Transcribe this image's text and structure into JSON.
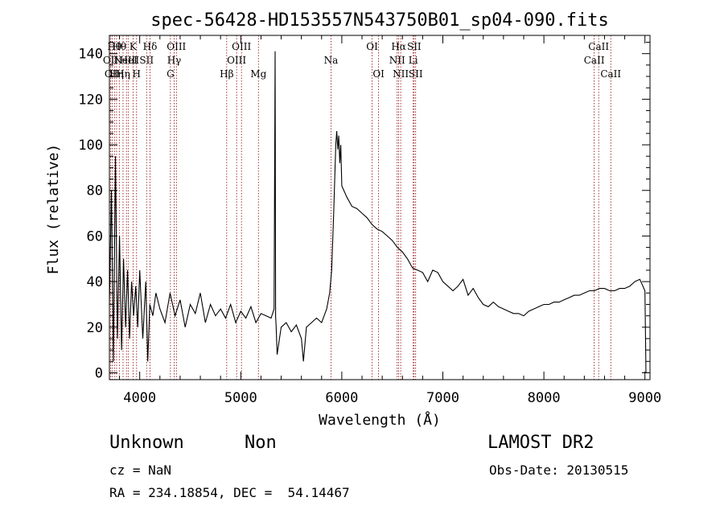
{
  "chart_data": {
    "type": "line",
    "title": "spec-56428-HD153557N543750B01_sp04-090.fits",
    "xlabel": "Wavelength (Å)",
    "ylabel": "Flux (relative)",
    "xlim": [
      3700,
      9050
    ],
    "ylim": [
      -3,
      148
    ],
    "xticks": [
      4000,
      5000,
      6000,
      7000,
      8000,
      9000
    ],
    "yticks": [
      0,
      20,
      40,
      60,
      80,
      100,
      120,
      140
    ],
    "grid": false,
    "line_color": "#000000",
    "marker_color": "#8b0000",
    "series": [
      {
        "x": [
          3700,
          3720,
          3740,
          3760,
          3780,
          3800,
          3820,
          3840,
          3860,
          3880,
          3900,
          3920,
          3940,
          3960,
          3980,
          4000,
          4030,
          4060,
          4080,
          4100,
          4130,
          4160,
          4200,
          4250,
          4300,
          4350,
          4400,
          4450,
          4500,
          4550,
          4600,
          4650,
          4700,
          4750,
          4800,
          4850,
          4900,
          4950,
          5000,
          5050,
          5100,
          5150,
          5200,
          5250,
          5300,
          5330,
          5340,
          5345,
          5350,
          5360,
          5400,
          5450,
          5500,
          5550,
          5600,
          5620,
          5650,
          5700,
          5750,
          5800,
          5850,
          5880,
          5900,
          5920,
          5940,
          5950,
          5960,
          5970,
          5980,
          5990,
          6000,
          6050,
          6100,
          6150,
          6200,
          6250,
          6300,
          6350,
          6400,
          6450,
          6500,
          6550,
          6600,
          6650,
          6700,
          6750,
          6800,
          6850,
          6900,
          6950,
          7000,
          7050,
          7100,
          7150,
          7200,
          7250,
          7300,
          7350,
          7400,
          7450,
          7500,
          7550,
          7600,
          7650,
          7700,
          7750,
          7800,
          7850,
          7900,
          7950,
          8000,
          8050,
          8100,
          8150,
          8200,
          8250,
          8300,
          8350,
          8400,
          8450,
          8500,
          8550,
          8600,
          8650,
          8700,
          8750,
          8800,
          8850,
          8900,
          8950,
          9000,
          9010
        ],
        "y": [
          30,
          80,
          5,
          95,
          15,
          60,
          10,
          50,
          20,
          45,
          15,
          40,
          25,
          38,
          20,
          45,
          15,
          40,
          5,
          30,
          25,
          35,
          28,
          22,
          35,
          25,
          32,
          20,
          30,
          26,
          35,
          22,
          30,
          25,
          28,
          24,
          30,
          22,
          27,
          24,
          29,
          22,
          26,
          25,
          24,
          28,
          141,
          25,
          20,
          8,
          20,
          22,
          18,
          21,
          15,
          5,
          20,
          22,
          24,
          22,
          28,
          35,
          45,
          70,
          100,
          106,
          98,
          104,
          92,
          100,
          82,
          77,
          73,
          72,
          70,
          68,
          65,
          63,
          62,
          60,
          58,
          55,
          53,
          50,
          46,
          45,
          44,
          40,
          45,
          44,
          40,
          38,
          36,
          38,
          41,
          34,
          37,
          33,
          30,
          29,
          31,
          29,
          28,
          27,
          26,
          26,
          25,
          27,
          28,
          29,
          30,
          30,
          31,
          31,
          32,
          33,
          34,
          34,
          35,
          36,
          36,
          37,
          37,
          36,
          36,
          37,
          37,
          38,
          40,
          41,
          36,
          0
        ]
      }
    ],
    "lines": [
      {
        "x": 3712,
        "label": "OII",
        "row": 2
      },
      {
        "x": 3728,
        "label": "OII",
        "row": 3
      },
      {
        "x": 3750,
        "label": "Hθ",
        "row": 1
      },
      {
        "x": 3771,
        "label": "Hη",
        "row": 3
      },
      {
        "x": 3798,
        "label": "Hθ",
        "row": 1
      },
      {
        "x": 3835,
        "label": "Hη",
        "row": 3
      },
      {
        "x": 3869,
        "label": "NeIII",
        "row": 2
      },
      {
        "x": 3889,
        "label": "HeI",
        "row": 2
      },
      {
        "x": 3934,
        "label": "K",
        "row": 1
      },
      {
        "x": 3969,
        "label": "H",
        "row": 3
      },
      {
        "x": 4068,
        "label": "SII",
        "row": 2
      },
      {
        "x": 4102,
        "label": "Hδ",
        "row": 1
      },
      {
        "x": 4304,
        "label": "G",
        "row": 3
      },
      {
        "x": 4341,
        "label": "Hγ",
        "row": 2
      },
      {
        "x": 4363,
        "label": "OIII",
        "row": 1
      },
      {
        "x": 4861,
        "label": "Hβ",
        "row": 3
      },
      {
        "x": 4959,
        "label": "OIII",
        "row": 2
      },
      {
        "x": 5007,
        "label": "OIII",
        "row": 1
      },
      {
        "x": 5175,
        "label": "Mg",
        "row": 3
      },
      {
        "x": 5893,
        "label": "Na",
        "row": 2
      },
      {
        "x": 6300,
        "label": "OI",
        "row": 1
      },
      {
        "x": 6364,
        "label": "OI",
        "row": 3
      },
      {
        "x": 6548,
        "label": "NII",
        "row": 2
      },
      {
        "x": 6563,
        "label": "Hα",
        "row": 1
      },
      {
        "x": 6583,
        "label": "NII",
        "row": 3
      },
      {
        "x": 6707,
        "label": "Li",
        "row": 2
      },
      {
        "x": 6716,
        "label": "SII",
        "row": 1
      },
      {
        "x": 6731,
        "label": "SII",
        "row": 3
      },
      {
        "x": 8498,
        "label": "CaII",
        "row": 2
      },
      {
        "x": 8542,
        "label": "CaII",
        "row": 1
      },
      {
        "x": 8662,
        "label": "CaII",
        "row": 3
      }
    ]
  },
  "info": {
    "object_class": "Unknown",
    "subclass": "Non",
    "survey": "LAMOST DR2",
    "redshift": "cz = NaN",
    "obs_date": "Obs-Date: 20130515",
    "coords": "RA = 234.18854, DEC =  54.14467"
  }
}
